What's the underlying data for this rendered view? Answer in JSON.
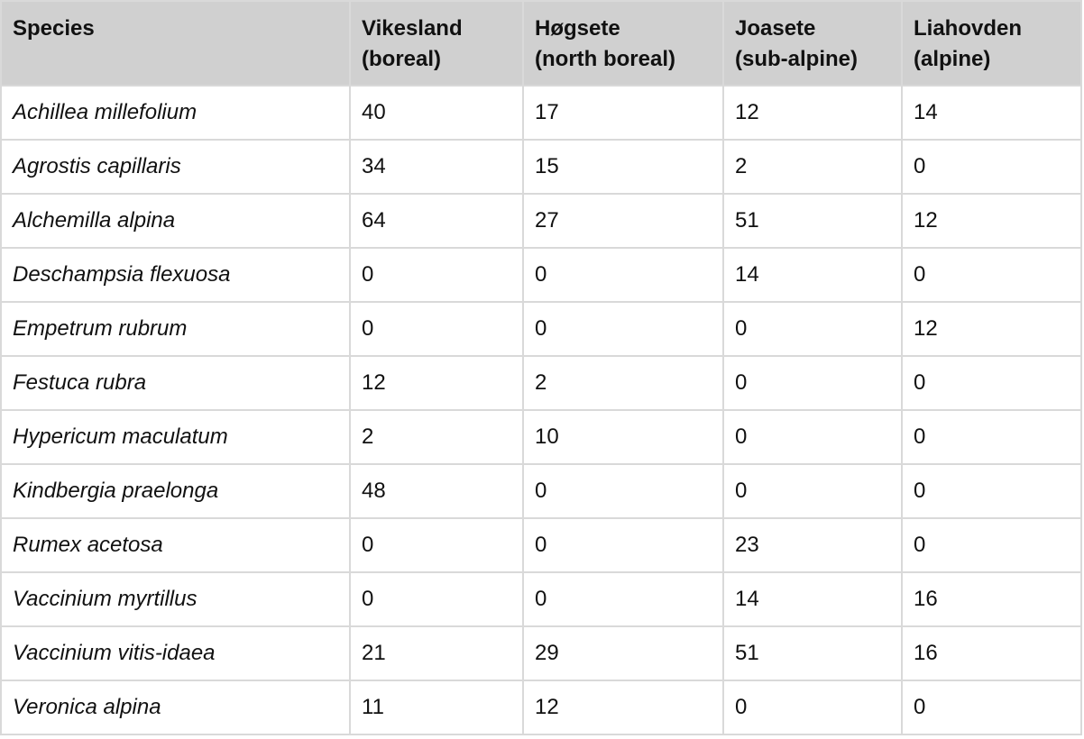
{
  "table": {
    "headers": [
      {
        "line1": "Species",
        "line2": ""
      },
      {
        "line1": "Vikesland",
        "line2": "(boreal)"
      },
      {
        "line1": "Høgsete",
        "line2": "(north boreal)"
      },
      {
        "line1": "Joasete",
        "line2": "(sub-alpine)"
      },
      {
        "line1": "Liahovden",
        "line2": "(alpine)"
      }
    ],
    "rows": [
      {
        "species": "Achillea millefolium",
        "vikesland": "40",
        "hogsete": "17",
        "joasete": "12",
        "liahovden": "14"
      },
      {
        "species": "Agrostis capillaris",
        "vikesland": "34",
        "hogsete": "15",
        "joasete": "2",
        "liahovden": "0"
      },
      {
        "species": "Alchemilla alpina",
        "vikesland": "64",
        "hogsete": "27",
        "joasete": "51",
        "liahovden": "12"
      },
      {
        "species": "Deschampsia flexuosa",
        "vikesland": "0",
        "hogsete": "0",
        "joasete": "14",
        "liahovden": "0"
      },
      {
        "species": "Empetrum rubrum",
        "vikesland": "0",
        "hogsete": "0",
        "joasete": "0",
        "liahovden": "12"
      },
      {
        "species": "Festuca rubra",
        "vikesland": "12",
        "hogsete": "2",
        "joasete": "0",
        "liahovden": "0"
      },
      {
        "species": "Hypericum maculatum",
        "vikesland": "2",
        "hogsete": "10",
        "joasete": "0",
        "liahovden": "0"
      },
      {
        "species": "Kindbergia praelonga",
        "vikesland": "48",
        "hogsete": "0",
        "joasete": "0",
        "liahovden": "0"
      },
      {
        "species": "Rumex acetosa",
        "vikesland": "0",
        "hogsete": "0",
        "joasete": "23",
        "liahovden": "0"
      },
      {
        "species": "Vaccinium myrtillus",
        "vikesland": "0",
        "hogsete": "0",
        "joasete": "14",
        "liahovden": "16"
      },
      {
        "species": "Vaccinium vitis-idaea",
        "vikesland": "21",
        "hogsete": "29",
        "joasete": "51",
        "liahovden": "16"
      },
      {
        "species": "Veronica alpina",
        "vikesland": "11",
        "hogsete": "12",
        "joasete": "0",
        "liahovden": "0"
      }
    ]
  },
  "colors": {
    "header_background": "#d0d0d0",
    "grid_lines": "#d9d9d9"
  }
}
